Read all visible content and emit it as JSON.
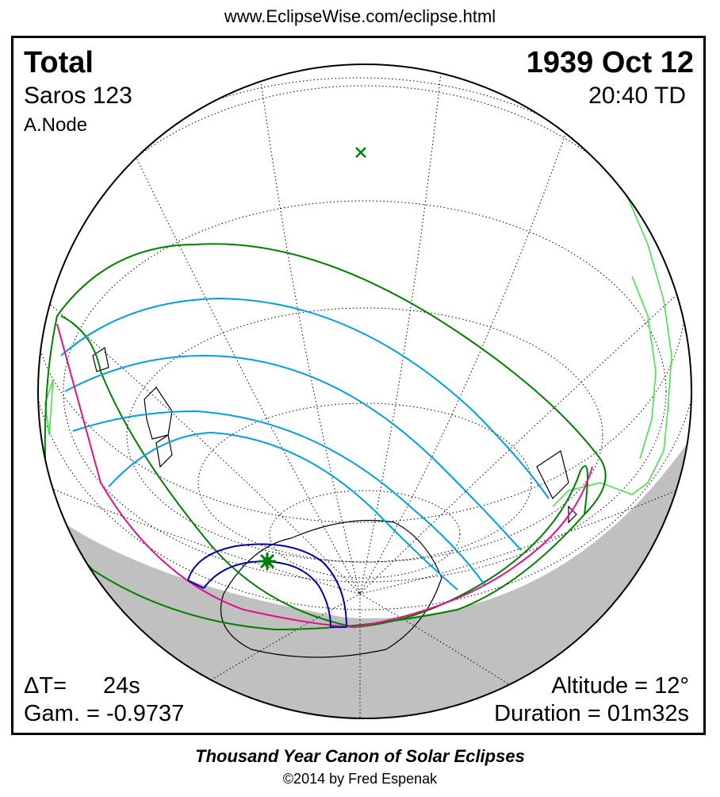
{
  "header": {
    "url": "www.EclipseWise.com/eclipse.html"
  },
  "eclipse": {
    "type": "Total",
    "date": "1939 Oct 12",
    "saros": "Saros 123",
    "time": "20:40 TD",
    "node": "A.Node",
    "delta_t_label": "ΔT=",
    "delta_t_value": "24s",
    "gamma": "Gam. = -0.9737",
    "altitude": "Altitude = 12°",
    "duration": "Duration = 01m32s"
  },
  "map": {
    "projection": "orthographic globe",
    "colors": {
      "night_shade": "#c0c0c0",
      "land_outline": "#000000",
      "outer_penumbra_limits": "#008000",
      "partial_eclipse_curves": "#00a0e0",
      "central_path_limits": "#e01090",
      "umbra_path": "#0000b0",
      "coastline_highlight": "#40e040",
      "greatest_eclipse_marker": "#008000",
      "subsolar_marker": "#008000"
    },
    "markers": [
      {
        "name": "greatest-eclipse",
        "symbol": "star"
      },
      {
        "name": "sub-solar-point",
        "symbol": "x-cross"
      }
    ]
  },
  "footer": {
    "title": "Thousand Year Canon of Solar Eclipses",
    "copyright": "©2014 by Fred Espenak"
  }
}
